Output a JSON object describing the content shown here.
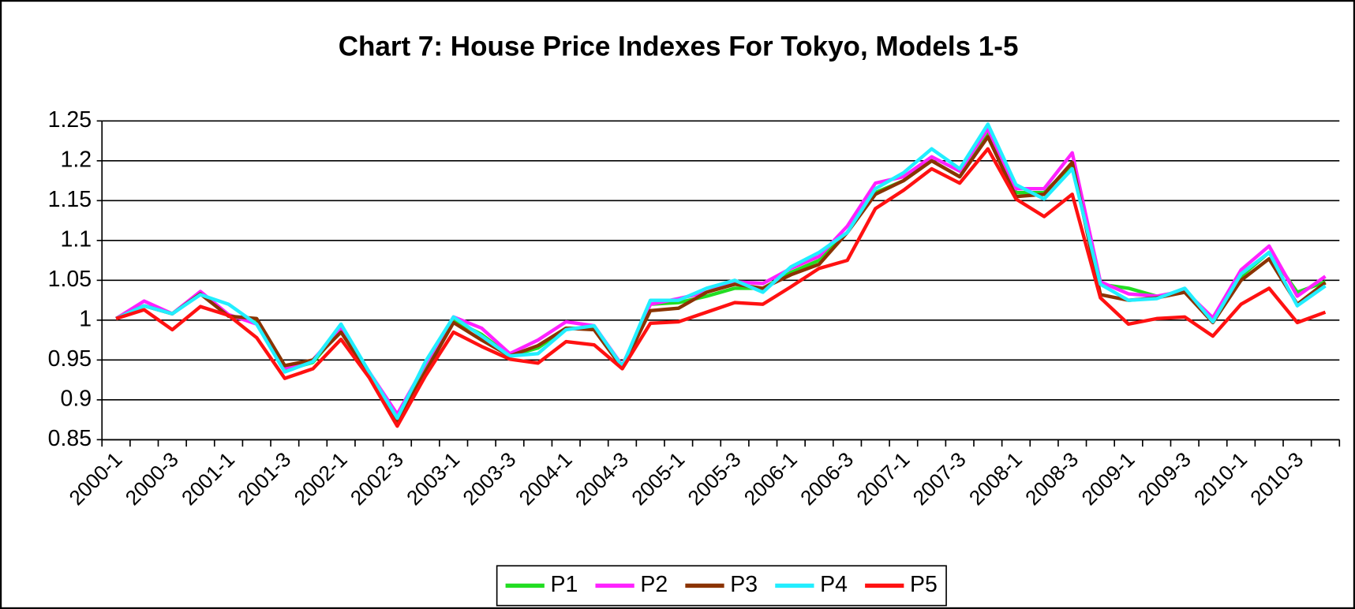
{
  "chart_data": {
    "type": "line",
    "title": "Chart 7: House Price Indexes For Tokyo, Models 1-5",
    "categories": [
      "2000-1",
      null,
      "2000-3",
      null,
      "2001-1",
      null,
      "2001-3",
      null,
      "2002-1",
      null,
      "2002-3",
      null,
      "2003-1",
      null,
      "2003-3",
      null,
      "2004-1",
      null,
      "2004-3",
      null,
      "2005-1",
      null,
      "2005-3",
      null,
      "2006-1",
      null,
      "2006-3",
      null,
      "2007-1",
      null,
      "2007-3",
      null,
      "2008-1",
      null,
      "2008-3",
      null,
      "2009-1",
      null,
      "2009-3",
      null,
      "2010-1",
      null,
      "2010-3",
      null
    ],
    "series": [
      {
        "name": "P1",
        "color": "#22dd22",
        "values": [
          1.002,
          1.018,
          1.008,
          1.033,
          1.005,
          0.998,
          0.937,
          0.947,
          0.988,
          0.935,
          0.875,
          0.94,
          1.0,
          0.982,
          0.955,
          0.965,
          0.99,
          0.99,
          0.942,
          1.02,
          1.022,
          1.03,
          1.04,
          1.04,
          1.06,
          1.075,
          1.11,
          1.16,
          1.175,
          1.2,
          1.18,
          1.235,
          1.16,
          1.16,
          1.195,
          1.045,
          1.04,
          1.03,
          1.035,
          1.0,
          1.055,
          1.085,
          1.035,
          1.048
        ]
      },
      {
        "name": "P2",
        "color": "#ff22ff",
        "values": [
          1.002,
          1.024,
          1.008,
          1.036,
          1.007,
          0.995,
          0.94,
          0.95,
          0.99,
          0.935,
          0.882,
          0.945,
          1.004,
          0.99,
          0.958,
          0.975,
          0.998,
          0.993,
          0.943,
          1.02,
          1.027,
          1.035,
          1.048,
          1.046,
          1.065,
          1.08,
          1.118,
          1.172,
          1.18,
          1.205,
          1.187,
          1.24,
          1.165,
          1.165,
          1.21,
          1.048,
          1.033,
          1.03,
          1.037,
          1.003,
          1.063,
          1.093,
          1.03,
          1.055
        ]
      },
      {
        "name": "P3",
        "color": "#8b3300",
        "values": [
          1.002,
          1.018,
          1.008,
          1.033,
          1.005,
          1.002,
          0.943,
          0.95,
          0.985,
          0.932,
          0.872,
          0.935,
          0.997,
          0.975,
          0.955,
          0.968,
          0.99,
          0.988,
          0.94,
          1.012,
          1.015,
          1.035,
          1.045,
          1.04,
          1.057,
          1.07,
          1.11,
          1.158,
          1.175,
          1.2,
          1.18,
          1.23,
          1.155,
          1.158,
          1.198,
          1.032,
          1.025,
          1.028,
          1.035,
          0.997,
          1.05,
          1.077,
          1.02,
          1.047
        ]
      },
      {
        "name": "P4",
        "color": "#22eeff",
        "values": [
          1.002,
          1.018,
          1.008,
          1.032,
          1.02,
          0.995,
          0.935,
          0.948,
          0.995,
          0.935,
          0.877,
          0.948,
          1.004,
          0.98,
          0.955,
          0.958,
          0.988,
          0.993,
          0.942,
          1.025,
          1.025,
          1.04,
          1.05,
          1.035,
          1.067,
          1.085,
          1.11,
          1.165,
          1.185,
          1.215,
          1.19,
          1.246,
          1.17,
          1.152,
          1.19,
          1.045,
          1.025,
          1.027,
          1.04,
          0.998,
          1.058,
          1.085,
          1.018,
          1.043
        ]
      },
      {
        "name": "P5",
        "color": "#ff1111",
        "values": [
          1.002,
          1.013,
          0.988,
          1.017,
          1.006,
          0.978,
          0.927,
          0.939,
          0.976,
          0.928,
          0.867,
          0.93,
          0.985,
          0.967,
          0.951,
          0.946,
          0.973,
          0.969,
          0.939,
          0.996,
          0.998,
          1.01,
          1.022,
          1.02,
          1.042,
          1.065,
          1.075,
          1.14,
          1.163,
          1.19,
          1.172,
          1.215,
          1.152,
          1.13,
          1.158,
          1.028,
          0.995,
          1.002,
          1.004,
          0.98,
          1.02,
          1.04,
          0.997,
          1.01
        ]
      }
    ],
    "ylim": [
      0.85,
      1.25
    ],
    "yticks": [
      0.85,
      0.9,
      0.95,
      1,
      1.05,
      1.1,
      1.15,
      1.2,
      1.25
    ],
    "grid": true,
    "legend": "bottom"
  }
}
